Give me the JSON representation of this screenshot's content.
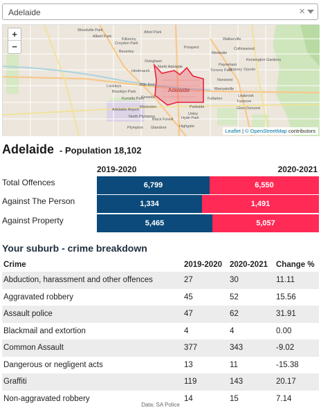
{
  "search": {
    "value": "Adelaide"
  },
  "map": {
    "zoom_in": "+",
    "zoom_out": "−",
    "highlight_label": "Adelaide",
    "labels": [
      "Woodville Park",
      "Albert Park",
      "Croydon Park",
      "Prospect",
      "Ovingham",
      "North Adelaide",
      "Medindie",
      "Walkerville",
      "Beverley",
      "Kilkenny",
      "Athol Park",
      "Collinswood",
      "Torrens Park",
      "Hindmarsh",
      "Kensington Gardens",
      "Lockleys",
      "Brooklyn Park",
      "Mile End",
      "Norwood",
      "Marryatville",
      "Kurralta Park",
      "Keswick",
      "Parkside",
      "Glen Osmond",
      "Adelaide Airport",
      "Marleston",
      "Fullarton",
      "North Plympton",
      "Black Forest",
      "Glandore",
      "Hyde Park",
      "Highgate",
      "Plympton",
      "Leabrook",
      "Unley",
      "Tusmore",
      "Payneham",
      "Stepney",
      "Glynde"
    ],
    "attribution_leaflet": "Leaflet",
    "attribution_osm": "© OpenStreetMap",
    "attribution_suffix": "contributors",
    "attribution_sep": " | "
  },
  "suburb": {
    "name": "Adelaide",
    "population": "- Population 18,102"
  },
  "comparison": {
    "year_left": "2019-2020",
    "year_right": "2020-2021",
    "colors": {
      "left": "#0b4a7a",
      "right": "#ff2a56"
    },
    "rows": [
      {
        "label": "Total Offences",
        "left_text": "6,799",
        "right_text": "6,550",
        "left": 6799,
        "right": 6550
      },
      {
        "label": "Against The Person",
        "left_text": "1,334",
        "right_text": "1,491",
        "left": 1334,
        "right": 1491
      },
      {
        "label": "Against Property",
        "left_text": "5,465",
        "right_text": "5,057",
        "left": 5465,
        "right": 5057
      }
    ]
  },
  "breakdown": {
    "title": "Your suburb - crime breakdown",
    "headers": [
      "Crime",
      "2019-2020",
      "2020-2021",
      "Change %"
    ],
    "rows": [
      [
        "Abduction, harassment and other offences",
        "27",
        "30",
        "11.11"
      ],
      [
        "Aggravated robbery",
        "45",
        "52",
        "15.56"
      ],
      [
        "Assault police",
        "47",
        "62",
        "31.91"
      ],
      [
        "Blackmail and extortion",
        "4",
        "4",
        "0.00"
      ],
      [
        "Common Assault",
        "377",
        "343",
        "-9.02"
      ],
      [
        "Dangerous or negligent acts",
        "13",
        "11",
        "-15.38"
      ],
      [
        "Graffiti",
        "119",
        "143",
        "20.17"
      ],
      [
        "Non-aggravated robbery",
        "14",
        "15",
        "7.14"
      ]
    ]
  },
  "source": "Data: SA Police"
}
